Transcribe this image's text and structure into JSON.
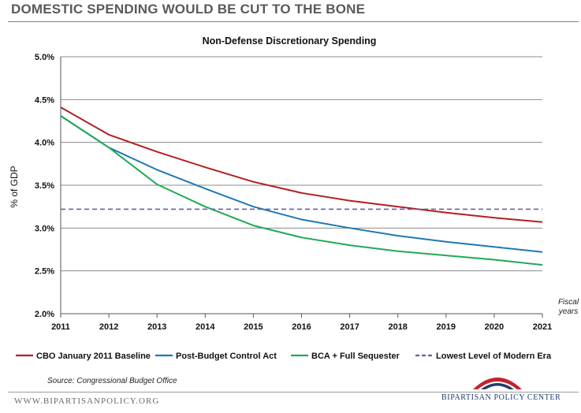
{
  "header": {
    "title": "DOMESTIC SPENDING WOULD BE CUT TO THE BONE"
  },
  "chart_data": {
    "type": "line",
    "title": "Non-Defense Discretionary Spending",
    "xlabel": "Fiscal years",
    "xlabel_lines": [
      "Fiscal",
      "years"
    ],
    "ylabel": "% of GDP",
    "x": [
      2011,
      2012,
      2013,
      2014,
      2015,
      2016,
      2017,
      2018,
      2019,
      2020,
      2021
    ],
    "ylim": [
      2.0,
      5.0
    ],
    "yticks": [
      2.0,
      2.5,
      3.0,
      3.5,
      4.0,
      4.5,
      5.0
    ],
    "ytick_labels": [
      "2.0%",
      "2.5%",
      "3.0%",
      "3.5%",
      "4.0%",
      "4.5%",
      "5.0%"
    ],
    "grid": true,
    "legend_position": "bottom",
    "series": [
      {
        "name": "CBO January 2011 Baseline",
        "color": "#b21f24",
        "style": "solid",
        "values": [
          4.41,
          4.09,
          3.89,
          3.71,
          3.54,
          3.41,
          3.32,
          3.25,
          3.18,
          3.12,
          3.07
        ]
      },
      {
        "name": "Post-Budget Control Act",
        "color": "#1f78b4",
        "style": "solid",
        "values": [
          4.31,
          3.94,
          3.68,
          3.46,
          3.25,
          3.1,
          3.0,
          2.91,
          2.84,
          2.78,
          2.72
        ]
      },
      {
        "name": "BCA + Full Sequester",
        "color": "#1faa55",
        "style": "solid",
        "values": [
          4.31,
          3.94,
          3.51,
          3.25,
          3.03,
          2.89,
          2.8,
          2.73,
          2.68,
          2.63,
          2.57
        ]
      },
      {
        "name": "Lowest Level of Modern Era",
        "color": "#6b5e9e",
        "style": "dashed",
        "values": [
          3.22,
          3.22,
          3.22,
          3.22,
          3.22,
          3.22,
          3.22,
          3.22,
          3.22,
          3.22,
          3.22
        ]
      }
    ]
  },
  "footer": {
    "source": "Source: Congressional Budget Office",
    "website": "WWW.BIPARTISANPOLICY.ORG",
    "org_name": "BIPARTISAN POLICY CENTER"
  }
}
